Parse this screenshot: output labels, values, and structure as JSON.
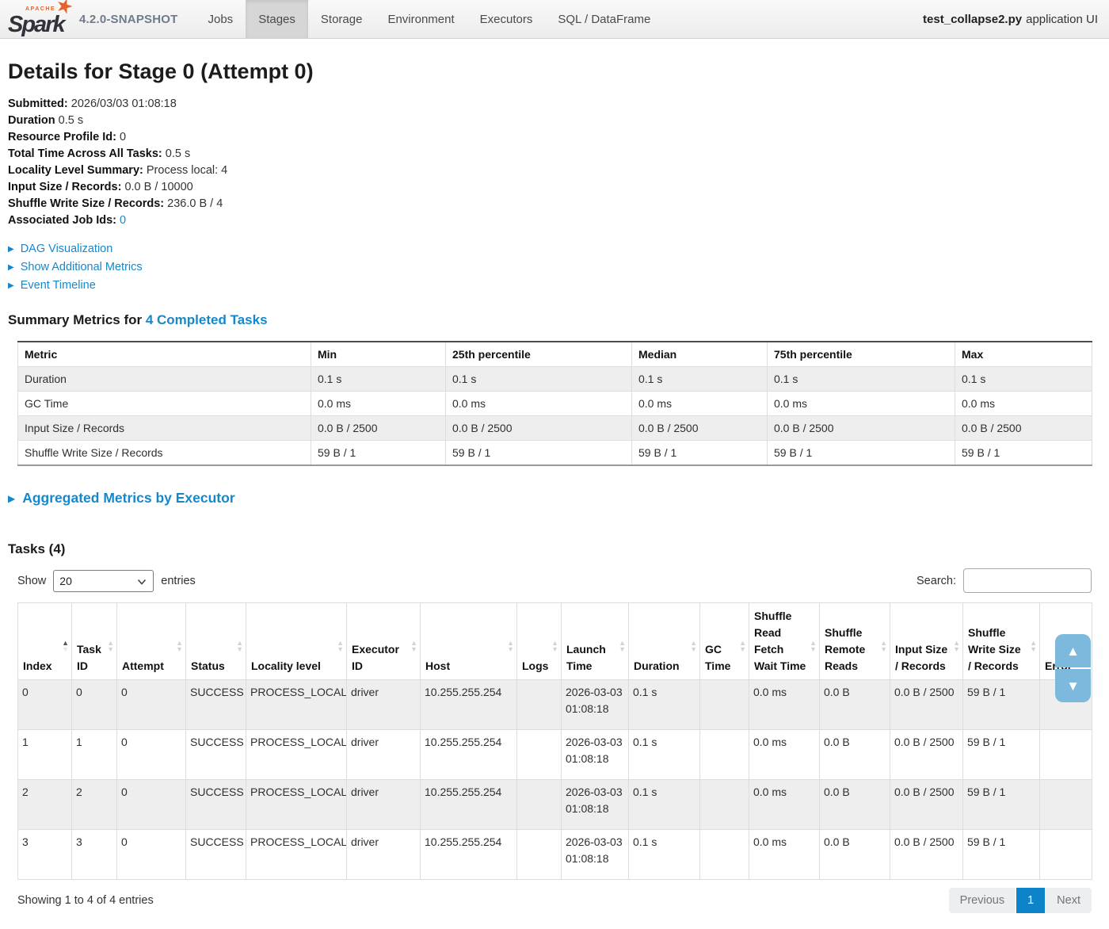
{
  "navbar": {
    "logo": {
      "apache": "APACHE",
      "spark": "Spark"
    },
    "version": "4.2.0-SNAPSHOT",
    "items": [
      {
        "label": "Jobs",
        "active": false
      },
      {
        "label": "Stages",
        "active": true
      },
      {
        "label": "Storage",
        "active": false
      },
      {
        "label": "Environment",
        "active": false
      },
      {
        "label": "Executors",
        "active": false
      },
      {
        "label": "SQL / DataFrame",
        "active": false
      }
    ],
    "app_name": "test_collapse2.py",
    "app_suffix": "application UI"
  },
  "page": {
    "title": "Details for Stage 0 (Attempt 0)"
  },
  "details": [
    {
      "label": "Submitted:",
      "value": "2026/03/03 01:08:18"
    },
    {
      "label": "Duration",
      "value": "0.5 s"
    },
    {
      "label": "Resource Profile Id:",
      "value": "0"
    },
    {
      "label": "Total Time Across All Tasks:",
      "value": "0.5 s"
    },
    {
      "label": "Locality Level Summary:",
      "value": "Process local: 4"
    },
    {
      "label": "Input Size / Records:",
      "value": "0.0 B / 10000"
    },
    {
      "label": "Shuffle Write Size / Records:",
      "value": "236.0 B / 4"
    },
    {
      "label": "Associated Job Ids:",
      "value": "0",
      "link": true
    }
  ],
  "collapsibles": [
    {
      "label": "DAG Visualization"
    },
    {
      "label": "Show Additional Metrics"
    },
    {
      "label": "Event Timeline"
    }
  ],
  "summary": {
    "heading_prefix": "Summary Metrics for ",
    "heading_link": "4 Completed Tasks",
    "columns": [
      "Metric",
      "Min",
      "25th percentile",
      "Median",
      "75th percentile",
      "Max"
    ],
    "rows": [
      [
        "Duration",
        "0.1 s",
        "0.1 s",
        "0.1 s",
        "0.1 s",
        "0.1 s"
      ],
      [
        "GC Time",
        "0.0 ms",
        "0.0 ms",
        "0.0 ms",
        "0.0 ms",
        "0.0 ms"
      ],
      [
        "Input Size / Records",
        "0.0 B / 2500",
        "0.0 B / 2500",
        "0.0 B / 2500",
        "0.0 B / 2500",
        "0.0 B / 2500"
      ],
      [
        "Shuffle Write Size / Records",
        "59 B / 1",
        "59 B / 1",
        "59 B / 1",
        "59 B / 1",
        "59 B / 1"
      ]
    ]
  },
  "aggregated": {
    "heading": "Aggregated Metrics by Executor"
  },
  "tasks": {
    "heading": "Tasks (4)",
    "show_label": "Show",
    "page_size": "20",
    "entries_label": "entries",
    "search_label": "Search:",
    "search_value": "",
    "columns": [
      {
        "key": "index",
        "label": "Index",
        "sort": "asc"
      },
      {
        "key": "task-id",
        "label": "Task ID"
      },
      {
        "key": "attempt",
        "label": "Attempt"
      },
      {
        "key": "status",
        "label": "Status"
      },
      {
        "key": "locality-level",
        "label": "Locality level"
      },
      {
        "key": "executor-id",
        "label": "Executor ID"
      },
      {
        "key": "host",
        "label": "Host"
      },
      {
        "key": "logs",
        "label": "Logs"
      },
      {
        "key": "launch-time",
        "label": "Launch Time"
      },
      {
        "key": "duration",
        "label": "Duration"
      },
      {
        "key": "gc-time",
        "label": "GC Time"
      },
      {
        "key": "shuffle-read-fetch-wait-time",
        "label": "Shuffle Read Fetch Wait Time"
      },
      {
        "key": "shuffle-remote-reads",
        "label": "Shuffle Remote Reads"
      },
      {
        "key": "input-size-records",
        "label": "Input Size / Records"
      },
      {
        "key": "shuffle-write-size-records",
        "label": "Shuffle Write Size / Records"
      },
      {
        "key": "error",
        "label": "Error"
      }
    ],
    "rows": [
      [
        "0",
        "0",
        "0",
        "SUCCESS",
        "PROCESS_LOCAL",
        "driver",
        "10.255.255.254",
        "",
        "2026-03-03 01:08:18",
        "0.1 s",
        "",
        "0.0 ms",
        "0.0 B",
        "0.0 B / 2500",
        "59 B / 1",
        ""
      ],
      [
        "1",
        "1",
        "0",
        "SUCCESS",
        "PROCESS_LOCAL",
        "driver",
        "10.255.255.254",
        "",
        "2026-03-03 01:08:18",
        "0.1 s",
        "",
        "0.0 ms",
        "0.0 B",
        "0.0 B / 2500",
        "59 B / 1",
        ""
      ],
      [
        "2",
        "2",
        "0",
        "SUCCESS",
        "PROCESS_LOCAL",
        "driver",
        "10.255.255.254",
        "",
        "2026-03-03 01:08:18",
        "0.1 s",
        "",
        "0.0 ms",
        "0.0 B",
        "0.0 B / 2500",
        "59 B / 1",
        ""
      ],
      [
        "3",
        "3",
        "0",
        "SUCCESS",
        "PROCESS_LOCAL",
        "driver",
        "10.255.255.254",
        "",
        "2026-03-03 01:08:18",
        "0.1 s",
        "",
        "0.0 ms",
        "0.0 B",
        "0.0 B / 2500",
        "59 B / 1",
        ""
      ]
    ],
    "footer_text": "Showing 1 to 4 of 4 entries",
    "pagination": {
      "prev": "Previous",
      "page": "1",
      "next": "Next"
    }
  },
  "colors": {
    "accent_blue": "#0d83c9",
    "link_blue": "#1588cb",
    "stripe": "#eeeeee",
    "spark_orange": "#e8622c",
    "scroll_button_blue": "#7cb9dc"
  }
}
